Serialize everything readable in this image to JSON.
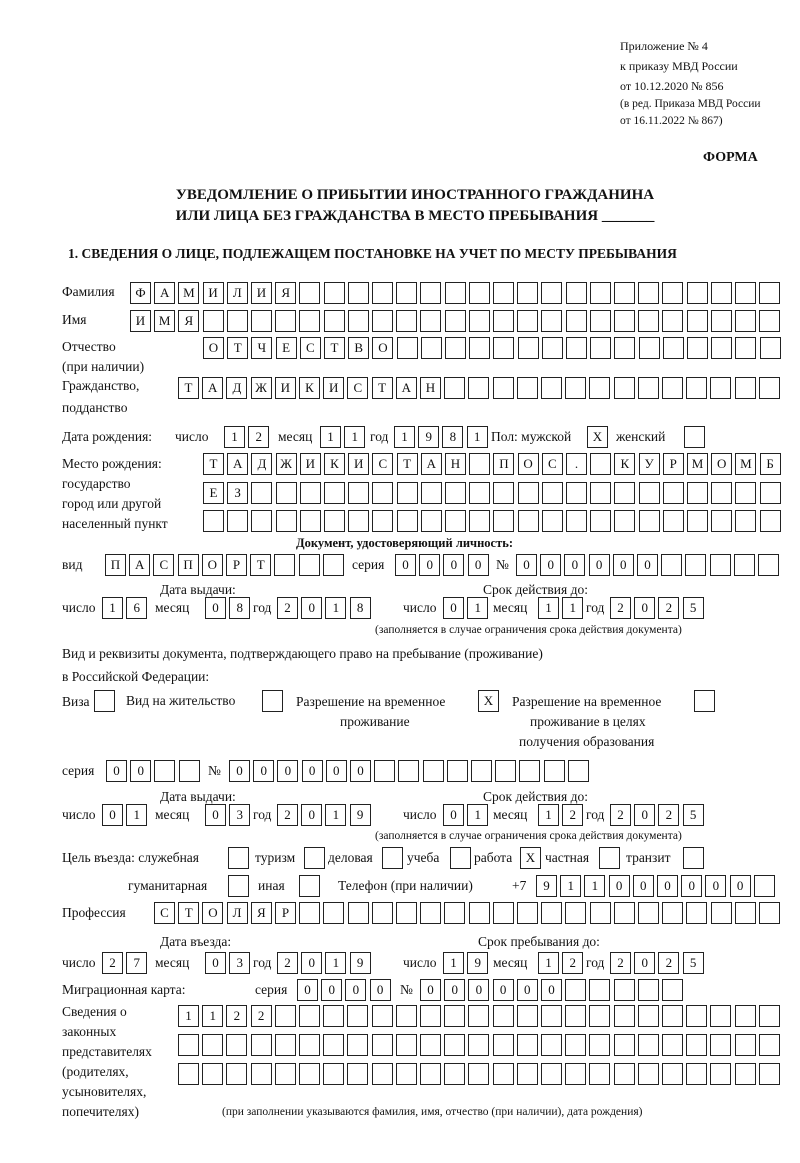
{
  "header": {
    "annex_lines": [
      "Приложение № 4",
      "к приказу МВД России",
      "от 10.12.2020 № 856"
    ],
    "edition_lines": [
      "(в ред. Приказа МВД России",
      "от 16.11.2022 № 867)"
    ],
    "form_label": "ФОРМА",
    "title_line1": "УВЕДОМЛЕНИЕ О ПРИБЫТИИ ИНОСТРАННОГО ГРАЖДАНИНА",
    "title_line2": "ИЛИ ЛИЦА БЕЗ ГРАЖДАНСТВА В МЕСТО ПРЕБЫВАНИЯ _______",
    "section1": "1. СВЕДЕНИЯ О ЛИЦЕ, ПОДЛЕЖАЩЕМ ПОСТАНОВКЕ НА УЧЕТ ПО МЕСТУ ПРЕБЫВАНИЯ"
  },
  "labels": {
    "surname": "Фамилия",
    "name": "Имя",
    "patronymic": "Отчество",
    "patronymic_note": "(при наличии)",
    "citizenship1": "Гражданство,",
    "citizenship2": "подданство",
    "birth_date": "Дата рождения:",
    "day": "число",
    "month": "месяц",
    "year": "год",
    "sex_male": "Пол: мужской",
    "sex_female": "женский",
    "birthplace": [
      "Место рождения:",
      "государство",
      "город или другой",
      "населенный пункт"
    ],
    "id_doc": "Документ, удостоверяющий личность:",
    "kind": "вид",
    "series": "серия",
    "number": "№",
    "issue_date": "Дата выдачи:",
    "valid_until": "Срок действия до:",
    "validity_note": "(заполняется в случае ограничения срока действия документа)",
    "right_doc1": "Вид и реквизиты документа, подтверждающего право на пребывание (проживание)",
    "right_doc2": "в Российской Федерации:",
    "visa": "Виза",
    "residence": "Вид на жительство",
    "temp_res1": "Разрешение на временное",
    "temp_res2": "проживание",
    "temp_edu1": "Разрешение на временное",
    "temp_edu2": "проживание в целях",
    "temp_edu3": "получения образования",
    "purpose": "Цель въезда: служебная",
    "tourism": "туризм",
    "business": "деловая",
    "study": "учеба",
    "work": "работа",
    "private": "частная",
    "transit": "транзит",
    "humanitarian": "гуманитарная",
    "other": "иная",
    "phone": "Телефон (при наличии)",
    "phone_prefix": "+7",
    "profession": "Профессия",
    "entry_date": "Дата въезда:",
    "stay_until": "Срок пребывания до:",
    "migration_card": "Миграционная карта:",
    "representatives": [
      "Сведения о",
      "законных",
      "представителях",
      "(родителях,",
      "усыновителях,",
      "попечителях)"
    ],
    "representatives_note": "(при заполнении указываются фамилия, имя, отчество (при наличии), дата рождения)"
  },
  "values": {
    "surname": "ФАМИЛИЯ",
    "name": "ИМЯ",
    "patronymic": "ОТЧЕСТВО",
    "citizenship": "ТАДЖИКИСТАН",
    "birth_day": "12",
    "birth_month": "11",
    "birth_year": "1981",
    "sex_male": "X",
    "sex_female": "",
    "birthplace": [
      "ТАДЖИКИСТАН ПОС. КУРМОМБ",
      "ЕЗ",
      ""
    ],
    "id_kind": "ПАСПОРТ",
    "id_series": "0000",
    "id_number": "000000",
    "id_issue": {
      "day": "16",
      "month": "08",
      "year": "2018"
    },
    "id_valid": {
      "day": "01",
      "month": "11",
      "year": "2025"
    },
    "visa": "",
    "residence": "",
    "temp_res": "X",
    "temp_edu": "",
    "rd_series": "00",
    "rd_number": "000000",
    "rd_issue": {
      "day": "01",
      "month": "03",
      "year": "2019"
    },
    "rd_valid": {
      "day": "01",
      "month": "12",
      "year": "2025"
    },
    "purpose": {
      "official": "",
      "tourism": "",
      "business": "",
      "study": "",
      "work": "X",
      "private": "",
      "transit": "",
      "humanitarian": "",
      "other": ""
    },
    "phone": "911000000",
    "profession": "СТОЛЯР",
    "entry": {
      "day": "27",
      "month": "03",
      "year": "2019"
    },
    "stay": {
      "day": "19",
      "month": "12",
      "year": "2025"
    },
    "mc_series": "0000",
    "mc_number": "000000",
    "representatives": [
      "1122",
      "",
      ""
    ]
  }
}
